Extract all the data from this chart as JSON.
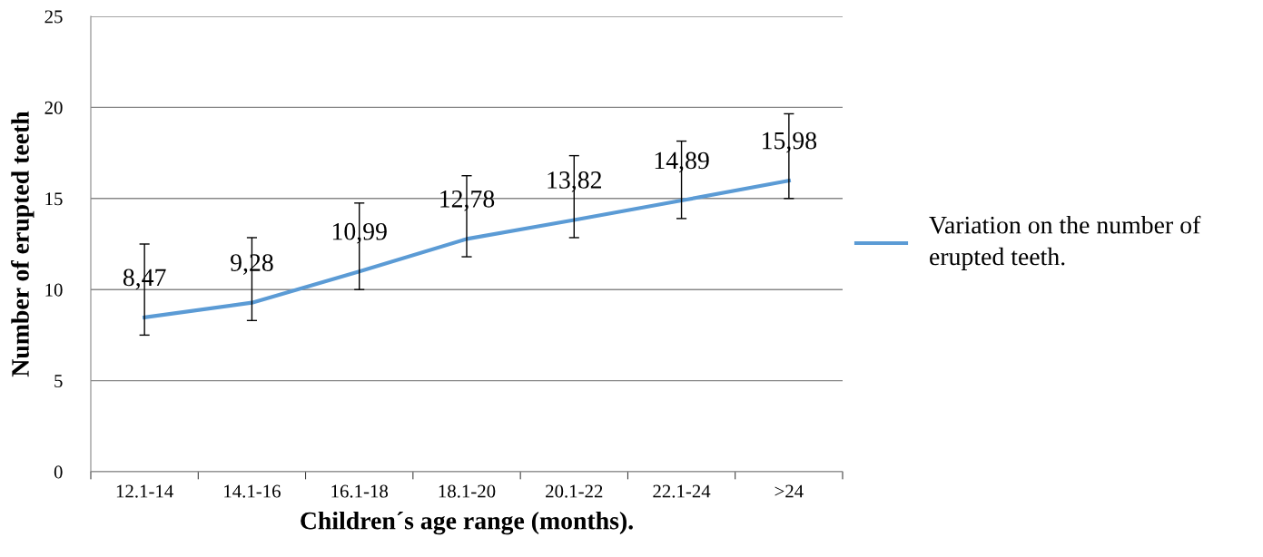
{
  "chart_data": {
    "type": "line",
    "xlabel": "Children´s age range (months).",
    "ylabel": "Number of erupted teeth",
    "categories": [
      "12.1-14",
      "14.1-16",
      "16.1-18",
      "18.1-20",
      "20.1-22",
      "22.1-24",
      ">24"
    ],
    "series": [
      {
        "name": "Variation on the number of erupted teeth.",
        "color": "#5b9bd5",
        "values": [
          8.47,
          9.28,
          10.99,
          12.78,
          13.82,
          14.89,
          15.98
        ],
        "errors": [
          [
            7.5,
            12.5
          ],
          [
            8.3,
            12.85
          ],
          [
            10.0,
            14.75
          ],
          [
            11.8,
            16.25
          ],
          [
            12.85,
            17.35
          ],
          [
            13.9,
            18.15
          ],
          [
            15.0,
            19.65
          ]
        ],
        "value_labels": [
          "8,47",
          "9,28",
          "10,99",
          "12,78",
          "13,82",
          "14,89",
          "15,98"
        ]
      }
    ],
    "ylim": [
      0,
      25
    ],
    "yticks": [
      0,
      5,
      10,
      15,
      20,
      25
    ],
    "grid": "y",
    "legend": "right",
    "marker": "none",
    "line_style": "solid"
  }
}
